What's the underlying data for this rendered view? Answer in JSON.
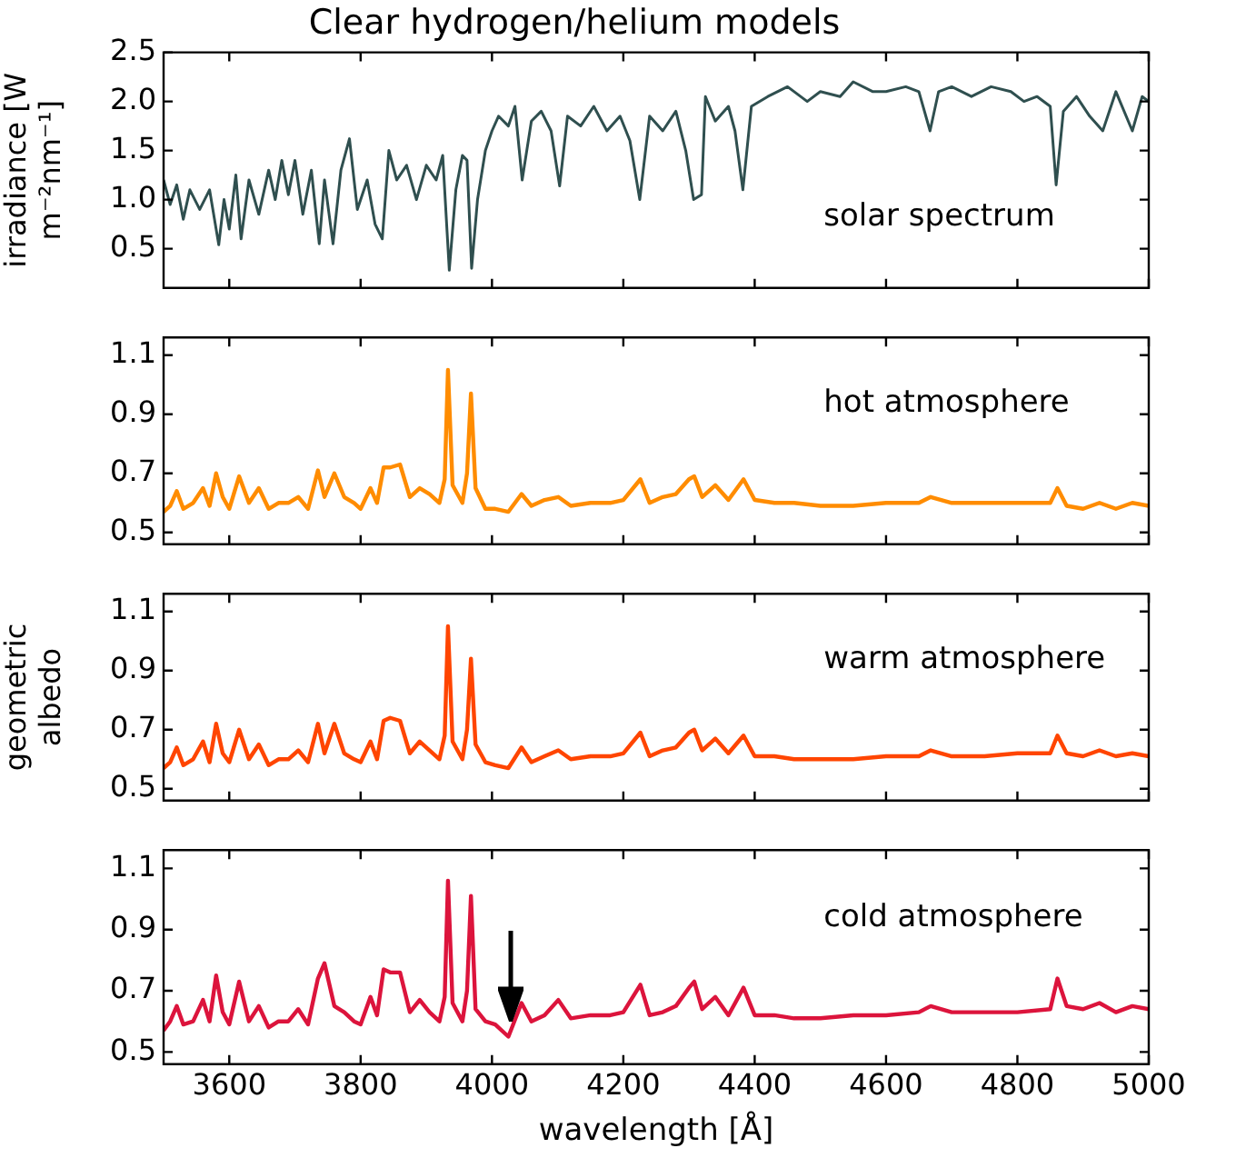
{
  "chart_data": [
    {
      "type": "line",
      "title": "Clear hydrogen/helium models",
      "ylabel": "irradiance [W m⁻²nm⁻¹]",
      "annotations": [
        "solar spectrum"
      ],
      "xlim": [
        3500,
        5000
      ],
      "xticks": [
        3600,
        3800,
        4000,
        4200,
        4400,
        4600,
        4800,
        5000
      ],
      "ylim": [
        0.1,
        2.5
      ],
      "yticks": [
        0.5,
        {
          "value": 1,
          "label": "1.0"
        },
        1.5,
        {
          "value": 2,
          "label": "2.0"
        },
        2.5
      ],
      "tick_labels": "y",
      "grid": false,
      "x": [
        3500,
        3510,
        3520,
        3530,
        3540,
        3555,
        3570,
        3584,
        3592,
        3600,
        3610,
        3618,
        3630,
        3645,
        3660,
        3670,
        3680,
        3690,
        3700,
        3712,
        3725,
        3737,
        3745,
        3758,
        3770,
        3783,
        3795,
        3810,
        3822,
        3833,
        3843,
        3855,
        3870,
        3885,
        3900,
        3915,
        3925,
        3935,
        3945,
        3955,
        3962,
        3969,
        3978,
        3990,
        4000,
        4010,
        4025,
        4035,
        4046,
        4060,
        4075,
        4090,
        4103,
        4115,
        4135,
        4155,
        4175,
        4195,
        4210,
        4225,
        4240,
        4260,
        4280,
        4295,
        4307,
        4319,
        4325,
        4340,
        4360,
        4370,
        4382,
        4395,
        4420,
        4450,
        4480,
        4500,
        4530,
        4550,
        4580,
        4600,
        4630,
        4650,
        4667,
        4680,
        4700,
        4730,
        4760,
        4790,
        4810,
        4830,
        4850,
        4859,
        4870,
        4890,
        4910,
        4930,
        4950,
        4975,
        4990,
        5000
      ],
      "series": [
        {
          "color": "#2f4f4f",
          "values": [
            1.2,
            0.95,
            1.15,
            0.8,
            1.1,
            0.9,
            1.1,
            0.54,
            1.0,
            0.7,
            1.25,
            0.6,
            1.2,
            0.85,
            1.3,
            1.0,
            1.4,
            1.05,
            1.4,
            0.85,
            1.3,
            0.55,
            1.2,
            0.55,
            1.3,
            1.62,
            0.9,
            1.2,
            0.75,
            0.6,
            1.5,
            1.2,
            1.35,
            1.0,
            1.35,
            1.2,
            1.45,
            0.28,
            1.1,
            1.45,
            1.4,
            0.3,
            1.0,
            1.5,
            1.7,
            1.85,
            1.75,
            1.95,
            1.2,
            1.8,
            1.9,
            1.7,
            1.14,
            1.85,
            1.75,
            1.95,
            1.7,
            1.85,
            1.6,
            1.0,
            1.85,
            1.7,
            1.9,
            1.5,
            1.0,
            1.05,
            2.05,
            1.8,
            1.95,
            1.7,
            1.1,
            1.95,
            2.05,
            2.15,
            2.0,
            2.1,
            2.05,
            2.2,
            2.1,
            2.1,
            2.15,
            2.1,
            1.7,
            2.1,
            2.15,
            2.05,
            2.15,
            2.1,
            2.0,
            2.05,
            1.95,
            1.15,
            1.9,
            2.05,
            1.85,
            1.7,
            2.1,
            1.7,
            2.05,
            2.0
          ]
        }
      ]
    },
    {
      "type": "line",
      "annotations": [
        "hot atmosphere"
      ],
      "xlim": [
        3500,
        5000
      ],
      "xticks": [
        3600,
        3800,
        4000,
        4200,
        4400,
        4600,
        4800,
        5000
      ],
      "ylim": [
        0.46,
        1.16
      ],
      "yticks": [
        0.5,
        0.7,
        0.9,
        1.1
      ],
      "tick_labels": "y",
      "grid": false,
      "x": [
        3500,
        3510,
        3520,
        3530,
        3545,
        3560,
        3570,
        3580,
        3590,
        3600,
        3615,
        3630,
        3645,
        3660,
        3675,
        3690,
        3705,
        3720,
        3735,
        3745,
        3760,
        3775,
        3790,
        3800,
        3815,
        3825,
        3835,
        3845,
        3860,
        3875,
        3890,
        3905,
        3920,
        3928,
        3933,
        3940,
        3955,
        3962,
        3968,
        3975,
        3990,
        4005,
        4025,
        4045,
        4060,
        4080,
        4101,
        4120,
        4150,
        4180,
        4200,
        4226,
        4240,
        4260,
        4280,
        4300,
        4308,
        4320,
        4340,
        4360,
        4383,
        4400,
        4430,
        4460,
        4500,
        4550,
        4600,
        4650,
        4668,
        4700,
        4750,
        4800,
        4850,
        4861,
        4875,
        4900,
        4925,
        4950,
        4975,
        5000
      ],
      "series": [
        {
          "color": "#ff8c00",
          "values": [
            0.57,
            0.59,
            0.64,
            0.58,
            0.6,
            0.65,
            0.59,
            0.7,
            0.62,
            0.58,
            0.69,
            0.6,
            0.65,
            0.58,
            0.6,
            0.6,
            0.62,
            0.58,
            0.71,
            0.62,
            0.7,
            0.62,
            0.6,
            0.58,
            0.65,
            0.6,
            0.72,
            0.72,
            0.73,
            0.62,
            0.65,
            0.63,
            0.6,
            0.68,
            1.05,
            0.66,
            0.6,
            0.7,
            0.97,
            0.65,
            0.58,
            0.58,
            0.57,
            0.63,
            0.59,
            0.61,
            0.62,
            0.59,
            0.6,
            0.6,
            0.61,
            0.68,
            0.6,
            0.62,
            0.63,
            0.68,
            0.69,
            0.62,
            0.66,
            0.61,
            0.68,
            0.61,
            0.6,
            0.6,
            0.59,
            0.59,
            0.6,
            0.6,
            0.62,
            0.6,
            0.6,
            0.6,
            0.6,
            0.65,
            0.59,
            0.58,
            0.6,
            0.58,
            0.6,
            0.59
          ]
        }
      ]
    },
    {
      "type": "line",
      "ylabel": "geometric albedo",
      "annotations": [
        "warm atmosphere"
      ],
      "xlim": [
        3500,
        5000
      ],
      "xticks": [
        3600,
        3800,
        4000,
        4200,
        4400,
        4600,
        4800,
        5000
      ],
      "ylim": [
        0.46,
        1.16
      ],
      "yticks": [
        0.5,
        0.7,
        0.9,
        1.1
      ],
      "tick_labels": "y",
      "grid": false,
      "x": [
        3500,
        3510,
        3520,
        3530,
        3545,
        3560,
        3570,
        3580,
        3590,
        3600,
        3615,
        3630,
        3645,
        3660,
        3675,
        3690,
        3705,
        3720,
        3735,
        3745,
        3760,
        3775,
        3790,
        3800,
        3815,
        3825,
        3835,
        3845,
        3860,
        3875,
        3890,
        3905,
        3920,
        3928,
        3933,
        3940,
        3955,
        3962,
        3968,
        3975,
        3990,
        4005,
        4025,
        4045,
        4060,
        4080,
        4101,
        4120,
        4150,
        4180,
        4200,
        4226,
        4240,
        4260,
        4280,
        4300,
        4308,
        4320,
        4340,
        4360,
        4383,
        4400,
        4430,
        4460,
        4500,
        4550,
        4600,
        4650,
        4668,
        4700,
        4750,
        4800,
        4850,
        4861,
        4875,
        4900,
        4925,
        4950,
        4975,
        5000
      ],
      "series": [
        {
          "color": "#ff4500",
          "values": [
            0.57,
            0.59,
            0.64,
            0.58,
            0.6,
            0.66,
            0.59,
            0.72,
            0.62,
            0.59,
            0.7,
            0.6,
            0.65,
            0.58,
            0.6,
            0.6,
            0.63,
            0.59,
            0.72,
            0.62,
            0.72,
            0.62,
            0.6,
            0.59,
            0.66,
            0.6,
            0.73,
            0.74,
            0.73,
            0.62,
            0.66,
            0.63,
            0.6,
            0.68,
            1.05,
            0.66,
            0.6,
            0.7,
            0.94,
            0.65,
            0.59,
            0.58,
            0.57,
            0.64,
            0.59,
            0.61,
            0.63,
            0.6,
            0.61,
            0.61,
            0.62,
            0.69,
            0.61,
            0.63,
            0.64,
            0.69,
            0.7,
            0.63,
            0.67,
            0.62,
            0.68,
            0.61,
            0.61,
            0.6,
            0.6,
            0.6,
            0.61,
            0.61,
            0.63,
            0.61,
            0.61,
            0.62,
            0.62,
            0.68,
            0.62,
            0.61,
            0.63,
            0.61,
            0.62,
            0.61
          ]
        }
      ]
    },
    {
      "type": "line",
      "xlabel": "wavelength [Å]",
      "annotations": [
        "cold atmosphere"
      ],
      "xlim": [
        3500,
        5000
      ],
      "xticks": [
        3600,
        3800,
        4000,
        4200,
        4400,
        4600,
        4800,
        5000
      ],
      "ylim": [
        0.46,
        1.16
      ],
      "yticks": [
        0.5,
        0.7,
        0.9,
        1.1
      ],
      "grid": false,
      "x": [
        3500,
        3510,
        3520,
        3530,
        3545,
        3560,
        3570,
        3580,
        3590,
        3600,
        3615,
        3630,
        3645,
        3660,
        3675,
        3690,
        3705,
        3720,
        3735,
        3745,
        3760,
        3775,
        3790,
        3800,
        3815,
        3825,
        3835,
        3845,
        3860,
        3875,
        3890,
        3905,
        3920,
        3928,
        3933,
        3940,
        3955,
        3962,
        3968,
        3975,
        3990,
        4005,
        4025,
        4045,
        4060,
        4080,
        4101,
        4120,
        4150,
        4180,
        4200,
        4226,
        4240,
        4260,
        4280,
        4300,
        4308,
        4320,
        4340,
        4360,
        4383,
        4400,
        4430,
        4460,
        4500,
        4550,
        4600,
        4650,
        4668,
        4700,
        4750,
        4800,
        4850,
        4861,
        4875,
        4900,
        4925,
        4950,
        4975,
        5000
      ],
      "series": [
        {
          "color": "#dc143c",
          "values": [
            0.57,
            0.6,
            0.65,
            0.59,
            0.6,
            0.67,
            0.6,
            0.75,
            0.63,
            0.59,
            0.73,
            0.6,
            0.65,
            0.58,
            0.6,
            0.6,
            0.64,
            0.59,
            0.74,
            0.79,
            0.65,
            0.63,
            0.6,
            0.59,
            0.68,
            0.62,
            0.77,
            0.76,
            0.76,
            0.63,
            0.67,
            0.63,
            0.6,
            0.68,
            1.06,
            0.66,
            0.6,
            0.7,
            1.01,
            0.64,
            0.6,
            0.59,
            0.55,
            0.66,
            0.6,
            0.62,
            0.67,
            0.61,
            0.62,
            0.62,
            0.63,
            0.72,
            0.62,
            0.63,
            0.65,
            0.71,
            0.73,
            0.64,
            0.68,
            0.62,
            0.71,
            0.62,
            0.62,
            0.61,
            0.61,
            0.62,
            0.62,
            0.63,
            0.65,
            0.63,
            0.63,
            0.63,
            0.64,
            0.74,
            0.65,
            0.64,
            0.66,
            0.63,
            0.65,
            0.64
          ]
        }
      ]
    }
  ]
}
